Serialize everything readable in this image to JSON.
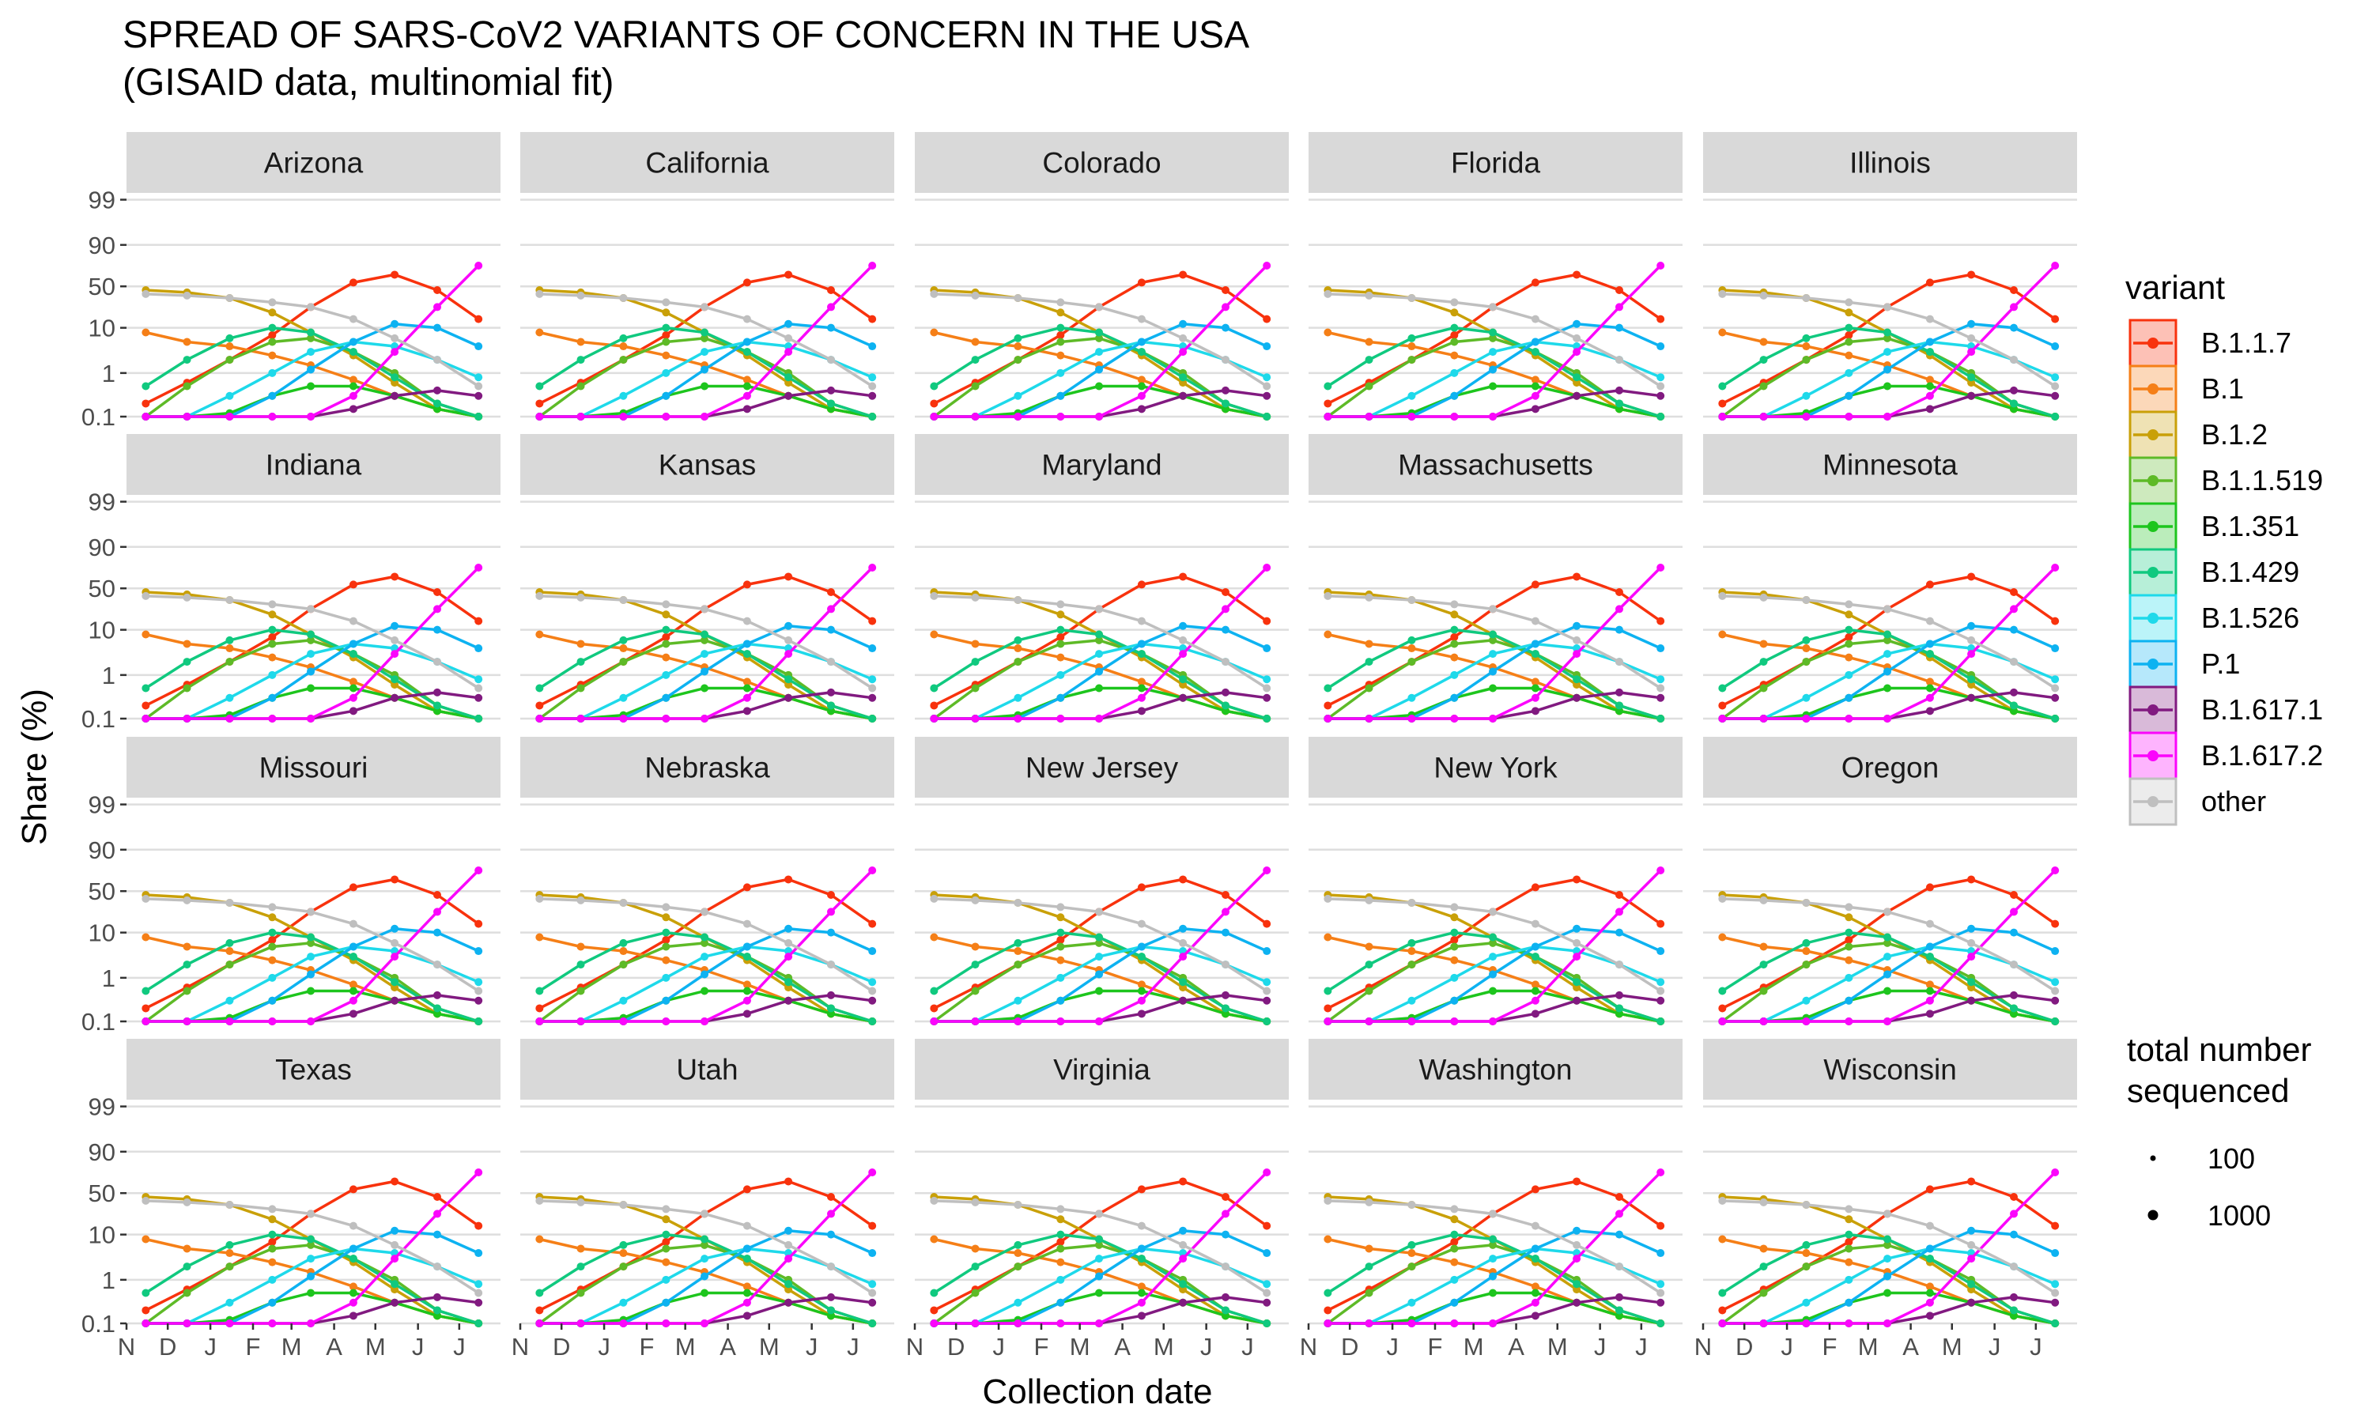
{
  "chart_data": {
    "type": "line",
    "title": "SPREAD OF SARS-CoV2 VARIANTS OF CONCERN IN THE USA",
    "subtitle": "(GISAID data, multinomial fit)",
    "xlabel": "Collection date",
    "ylabel": "Share (%)",
    "y_scale": "logit",
    "y_ticks": [
      "0.1",
      "1",
      "10",
      "50",
      "90",
      "99"
    ],
    "y_tick_values": [
      0.1,
      1,
      10,
      50,
      90,
      99
    ],
    "x_tick_labels": [
      "N",
      "D",
      "J",
      "F",
      "M",
      "A",
      "M",
      "J",
      "J"
    ],
    "x_tick_months": [
      "2020-11",
      "2020-12",
      "2021-01",
      "2021-02",
      "2021-03",
      "2021-04",
      "2021-05",
      "2021-06",
      "2021-07"
    ],
    "x_range": [
      "2020-11-01",
      "2021-07-31"
    ],
    "grid": true,
    "facets": [
      "Arizona",
      "California",
      "Colorado",
      "Florida",
      "Illinois",
      "Indiana",
      "Kansas",
      "Maryland",
      "Massachusetts",
      "Minnesota",
      "Missouri",
      "Nebraska",
      "New Jersey",
      "New York",
      "Oregon",
      "Texas",
      "Utah",
      "Virginia",
      "Washington",
      "Wisconsin"
    ],
    "series_months": [
      "2020-11",
      "2020-12",
      "2021-01",
      "2021-02",
      "2021-03",
      "2021-04",
      "2021-05",
      "2021-06",
      "2021-07"
    ],
    "series": [
      {
        "name": "B.1.1.7",
        "color": "#F8320D",
        "values": [
          0.2,
          0.6,
          2,
          7,
          25,
          55,
          65,
          45,
          15
        ]
      },
      {
        "name": "B.1",
        "color": "#F57F17",
        "values": [
          8,
          5,
          4,
          2.5,
          1.5,
          0.7,
          0.3,
          0.15,
          0.1
        ]
      },
      {
        "name": "B.1.2",
        "color": "#C9A008",
        "values": [
          45,
          42,
          35,
          20,
          8,
          2.5,
          0.6,
          0.15,
          0.1
        ]
      },
      {
        "name": "B.1.1.519",
        "color": "#5EBA27",
        "values": [
          0.1,
          0.5,
          2,
          5,
          6,
          3,
          1,
          0.2,
          0.1
        ]
      },
      {
        "name": "B.1.351",
        "color": "#1DC51D",
        "values": [
          0.1,
          0.1,
          0.12,
          0.3,
          0.5,
          0.5,
          0.3,
          0.15,
          0.1
        ]
      },
      {
        "name": "B.1.429",
        "color": "#10C97F",
        "values": [
          0.5,
          2,
          6,
          10,
          8,
          3,
          0.8,
          0.2,
          0.1
        ]
      },
      {
        "name": "B.1.526",
        "color": "#1ED9EA",
        "values": [
          0.1,
          0.1,
          0.3,
          1,
          3,
          5,
          4,
          2,
          0.8
        ]
      },
      {
        "name": "P.1",
        "color": "#0DB2F1",
        "values": [
          0.1,
          0.1,
          0.1,
          0.3,
          1.2,
          5,
          12,
          10,
          4
        ]
      },
      {
        "name": "B.1.617.1",
        "color": "#811A80",
        "values": [
          0.1,
          0.1,
          0.1,
          0.1,
          0.1,
          0.15,
          0.3,
          0.4,
          0.3
        ]
      },
      {
        "name": "B.1.617.2",
        "color": "#FB05FC",
        "values": [
          0.1,
          0.1,
          0.1,
          0.1,
          0.1,
          0.3,
          3,
          25,
          75
        ]
      },
      {
        "name": "other",
        "color": "#BFBFBF",
        "values": [
          40,
          38,
          35,
          30,
          25,
          15,
          6,
          2,
          0.5
        ]
      }
    ],
    "legend": {
      "title": "variant",
      "items": [
        "B.1.1.7",
        "B.1",
        "B.1.2",
        "B.1.1.519",
        "B.1.351",
        "B.1.429",
        "B.1.526",
        "P.1",
        "B.1.617.1",
        "B.1.617.2",
        "other"
      ],
      "size_title": "total number sequenced",
      "size_title_lines": [
        "total number",
        "sequenced"
      ],
      "size_items": [
        "100",
        "1000"
      ],
      "placement": "right"
    }
  }
}
